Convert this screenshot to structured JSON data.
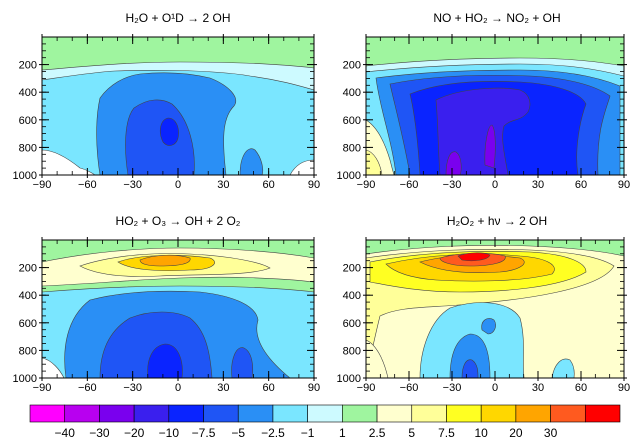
{
  "chart_data": [
    {
      "type": "heatmap",
      "title": "H₂O + O¹D → 2 OH",
      "x_ticks": [
        -90,
        -60,
        -30,
        0,
        30,
        60,
        90
      ],
      "y_ticks": [
        200,
        400,
        600,
        800,
        1000
      ],
      "xlim": [
        -90,
        90
      ],
      "ylim": [
        1000,
        0
      ],
      "field_summary": "weak positive (1 to 2.5) above ~150 hPa; -1 to -2.5 below; -5 to -7.5 core 20S-20N 200-950 hPa; -10 pocket near 0/600-800 hPa"
    },
    {
      "type": "heatmap",
      "title": "NO + HO₂ → NO₂ + OH",
      "x_ticks": [
        -90,
        -60,
        -30,
        0,
        30,
        60,
        90
      ],
      "y_ticks": [
        200,
        400,
        600,
        800,
        1000
      ],
      "xlim": [
        -90,
        90
      ],
      "ylim": [
        1000,
        0
      ],
      "field_summary": "1 to 2.5 above ~150 hPa; strong negative -10 to -20 across tropics 250-1000 hPa; -30 patches near surface; positive near south pole surface"
    },
    {
      "type": "heatmap",
      "title": "HO₂ + O₃ → OH + 2 O₂",
      "x_ticks": [
        -90,
        -60,
        -30,
        0,
        30,
        60,
        90
      ],
      "y_ticks": [
        200,
        400,
        600,
        800,
        1000
      ],
      "xlim": [
        -90,
        90
      ],
      "ylim": [
        1000,
        0
      ],
      "field_summary": "positive band 100-250 hPa peaking 10-20 near 15S/150 hPa; -2.5 to -5 in troposphere; -7.5 to -10 core 30S-20N 500-1000 hPa"
    },
    {
      "type": "heatmap",
      "title": "H₂O₂ + hν → 2 OH",
      "x_ticks": [
        -90,
        -60,
        -30,
        0,
        30,
        60,
        90
      ],
      "y_ticks": [
        200,
        400,
        600,
        800,
        1000
      ],
      "xlim": [
        -90,
        90
      ],
      "ylim": [
        1000,
        0
      ],
      "field_summary": "strong positive upper troposphere, 20-30 near 20S/150-200 hPa; 2.5-7.5 broadly in mid-troposphere; negative -2.5 to -7.5 in tropical lower troposphere"
    }
  ],
  "colorbar": {
    "labels": [
      "−40",
      "−30",
      "−20",
      "−10",
      "−7.5",
      "−5",
      "−2.5",
      "−1",
      "1",
      "2.5",
      "5",
      "7.5",
      "10",
      "20",
      "30"
    ],
    "colors": [
      "#ff00ff",
      "#b800f0",
      "#7a00ee",
      "#3a1fee",
      "#0a24ff",
      "#1f55f5",
      "#2a8ff5",
      "#7ae6ff",
      "#cdfaff",
      "#9ff59f",
      "#ffffcf",
      "#ffff99",
      "#ffff22",
      "#ffd700",
      "#ffa500",
      "#ff5a1f",
      "#ff0000"
    ]
  }
}
